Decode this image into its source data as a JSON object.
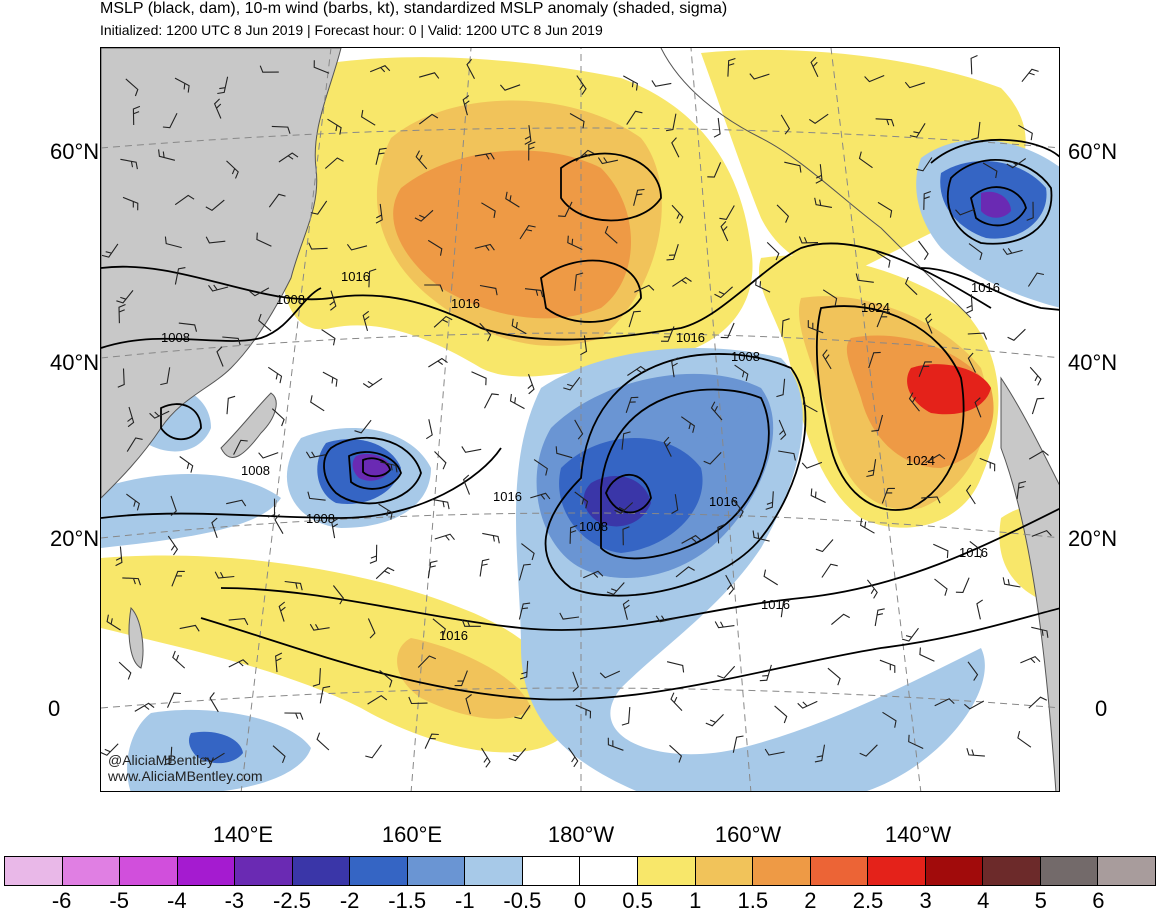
{
  "header": {
    "title": "MSLP (black, dam), 10-m wind (barbs, kt), standardized MSLP anomaly (shaded, sigma)",
    "subtitle": "Initialized: 1200 UTC 8 Jun 2019 | Forecast hour: 0 | Valid: 1200 UTC 8 Jun 2019"
  },
  "map": {
    "lat_labels_left": [
      "60°N",
      "40°N",
      "20°N",
      "0"
    ],
    "lat_labels_right": [
      "60°N",
      "40°N",
      "20°N",
      "0"
    ],
    "lon_labels": [
      "140°E",
      "160°E",
      "180°W",
      "160°W",
      "140°W"
    ],
    "contour_labels": [
      "1016",
      "1008",
      "1008",
      "1016",
      "1016",
      "1008",
      "1024",
      "1016",
      "1008",
      "1008",
      "1016",
      "1008",
      "1016",
      "1024",
      "1016",
      "1016",
      "1016"
    ],
    "colors": {
      "land": "#c8c8c8",
      "coast": "#555555",
      "contour": "#000000",
      "barb": "#222222",
      "grid": "#888888"
    }
  },
  "credits": {
    "handle": "@AliciaMBentley",
    "website": "www.AliciaMBentley.com"
  },
  "colorbar": {
    "labels": [
      "-6",
      "-5",
      "-4",
      "-3",
      "-2.5",
      "-2",
      "-1.5",
      "-1",
      "-0.5",
      "0",
      "0.5",
      "1",
      "1.5",
      "2",
      "2.5",
      "3",
      "4",
      "5",
      "6"
    ],
    "colors": [
      "#e9b8e8",
      "#e07fe3",
      "#d14fdc",
      "#a51bd0",
      "#6a2ab3",
      "#3a36a8",
      "#3565c4",
      "#6a95d3",
      "#a7c9e8",
      "#ffffff",
      "#ffffff",
      "#f8e76a",
      "#f1c35a",
      "#ee9a45",
      "#ec6436",
      "#e4221a",
      "#a10b0b",
      "#6c2a2a",
      "#736a6a",
      "#a89c9c"
    ]
  }
}
